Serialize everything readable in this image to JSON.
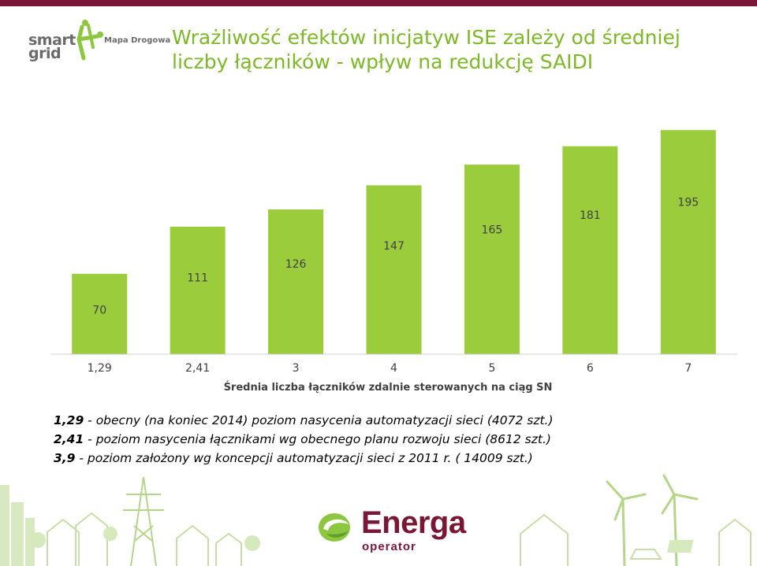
{
  "header": {
    "logo_word_1": "smart",
    "logo_word_2": "grid",
    "logo_tagline": "Mapa Drogowa",
    "title": "Wrażliwość efektów inicjatyw ISE zależy od średniej liczby łączników - wpływ na redukcję SAIDI"
  },
  "chart_data": {
    "type": "bar",
    "categories": [
      "1,29",
      "2,41",
      "3",
      "4",
      "5",
      "6",
      "7"
    ],
    "values": [
      70,
      111,
      126,
      147,
      165,
      181,
      195
    ],
    "value_labels": [
      "70",
      "111",
      "126",
      "147",
      "165",
      "181",
      "195"
    ],
    "xlabel": "Średnia liczba łączników zdalnie sterowanych na ciąg SN",
    "ylabel": "",
    "ylim": [
      0,
      200
    ],
    "bar_color": "#9bcc3c",
    "grid": false,
    "legend": "none"
  },
  "notes": [
    {
      "key": "1,29",
      "text": " - obecny (na koniec 2014) poziom nasycenia automatyzacji sieci (4072 szt.)"
    },
    {
      "key": "2,41",
      "text": " - poziom nasycenia łącznikami wg obecnego planu rozwoju sieci (8612 szt.)"
    },
    {
      "key": "3,9",
      "text": " - poziom założony wg koncepcji automatyzacji sieci  z 2011 r.  ( 14009 szt.)"
    }
  ],
  "footer": {
    "brand_name": "Energa",
    "brand_sub": "operator",
    "accent": "#7a1636",
    "green": "#8dc63f"
  }
}
